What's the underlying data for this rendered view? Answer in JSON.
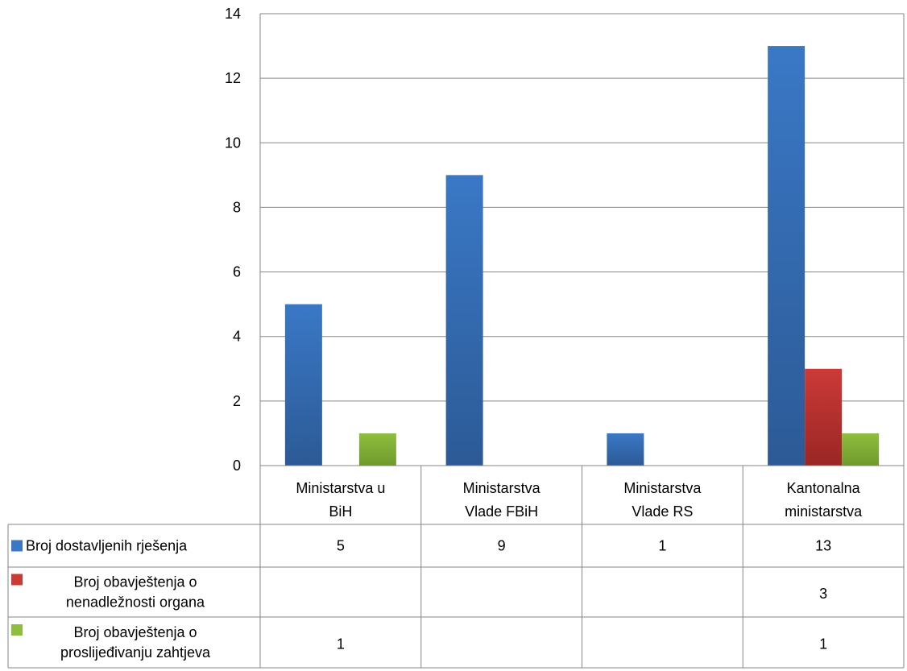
{
  "chart_data": {
    "type": "bar",
    "categories": [
      [
        "Ministarstva u",
        "BiH"
      ],
      [
        "Ministarstva",
        "Vlade FBiH"
      ],
      [
        "Ministarstva",
        "Vlade RS"
      ],
      [
        "Kantonalna",
        "ministarstva"
      ]
    ],
    "ylim": [
      0,
      14
    ],
    "yticks": [
      0,
      2,
      4,
      6,
      8,
      10,
      12,
      14
    ],
    "grid": true,
    "legend_placement": "data-table-left",
    "series": [
      {
        "name": [
          "Broj dostavljenih rješenja"
        ],
        "values": [
          5,
          9,
          1,
          13
        ],
        "table_values": [
          "5",
          "9",
          "1",
          "13"
        ],
        "color": "#3a78c6",
        "color_dark": "#2c5a96"
      },
      {
        "name": [
          "Broj obavještenja o",
          "nenadležnosti organa"
        ],
        "values": [
          null,
          null,
          null,
          3
        ],
        "table_values": [
          "",
          "",
          "",
          "3"
        ],
        "color": "#cc3a38",
        "color_dark": "#9a2624"
      },
      {
        "name": [
          "Broj obavještenja o",
          "proslijeđivanju zahtjeva"
        ],
        "values": [
          1,
          null,
          null,
          1
        ],
        "table_values": [
          "1",
          "",
          "",
          "1"
        ],
        "color": "#8fbe3e",
        "color_dark": "#6f9a2c"
      }
    ]
  }
}
